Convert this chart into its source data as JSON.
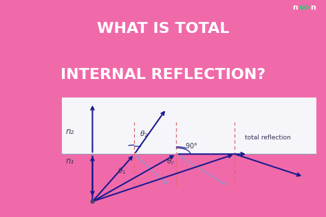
{
  "bg_color": "#f06aaa",
  "title_line1": "WHAT IS TOTAL",
  "title_line2": "INTERNAL REFLECTION?",
  "title_color": "#ffffff",
  "title_fontsize": 16,
  "diagram_bg_upper": "#f5f5fa",
  "diagram_bg_lower": "#c5d8f0",
  "n1_label": "n₁",
  "n2_label": "n₂",
  "label_color": "#333355",
  "arrow_color": "#1a1a8e",
  "arrow_color_light": "#8899cc",
  "dashed_color": "#dd6666",
  "noon_green": "#2ecc71",
  "noon_white": "#ffffff"
}
